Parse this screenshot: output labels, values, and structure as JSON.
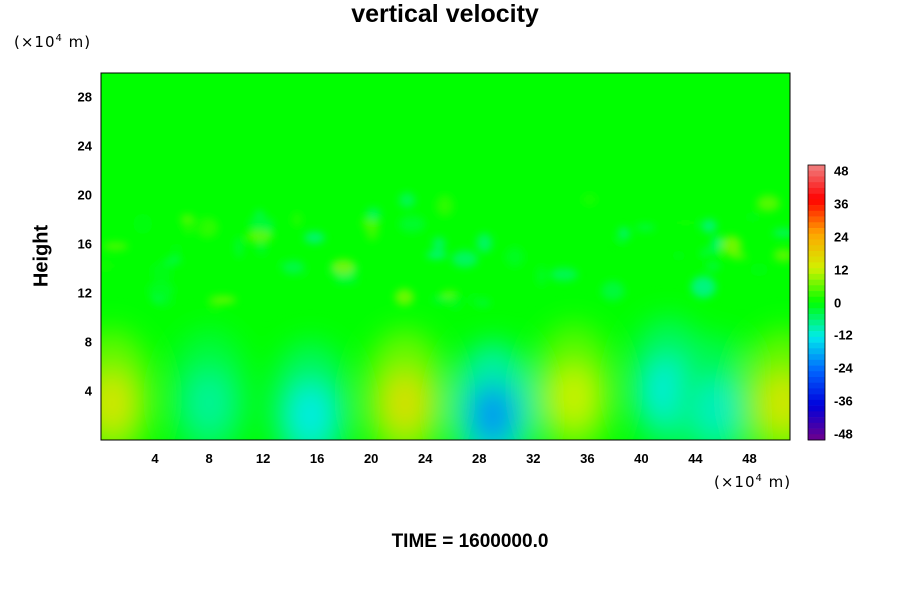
{
  "chart_data": {
    "type": "heatmap",
    "title": "vertical velocity",
    "ylabel": "Height",
    "y_unit": {
      "prefix": "(×10",
      "exp": "4",
      "suffix": " m)"
    },
    "x_unit": {
      "prefix": "(×10",
      "exp": "4",
      "suffix": " m)"
    },
    "x_ticks": [
      "4",
      "8",
      "12",
      "16",
      "20",
      "24",
      "28",
      "32",
      "36",
      "40",
      "44",
      "48"
    ],
    "y_ticks": [
      "4",
      "8",
      "12",
      "16",
      "20",
      "24",
      "28"
    ],
    "xlim": [
      0,
      51
    ],
    "ylim": [
      0,
      30
    ],
    "colorbar": {
      "ticks": [
        "48",
        "36",
        "24",
        "12",
        "0",
        "-12",
        "-24",
        "-36",
        "-48"
      ],
      "range": [
        -48,
        48
      ]
    },
    "features": [
      {
        "x": 0.8,
        "y": 3.5,
        "value": 14
      },
      {
        "x": 8.0,
        "y": 3.5,
        "value": -8
      },
      {
        "x": 15.5,
        "y": 2.5,
        "value": -12
      },
      {
        "x": 22.5,
        "y": 3.5,
        "value": 15
      },
      {
        "x": 29.0,
        "y": 2.5,
        "value": -20
      },
      {
        "x": 35.0,
        "y": 4.0,
        "value": 12
      },
      {
        "x": 42.0,
        "y": 4.5,
        "value": -12
      },
      {
        "x": 45.5,
        "y": 3.0,
        "value": -10
      },
      {
        "x": 50.5,
        "y": 3.5,
        "value": 14
      }
    ],
    "footer": "TIME = 1600000.0"
  }
}
